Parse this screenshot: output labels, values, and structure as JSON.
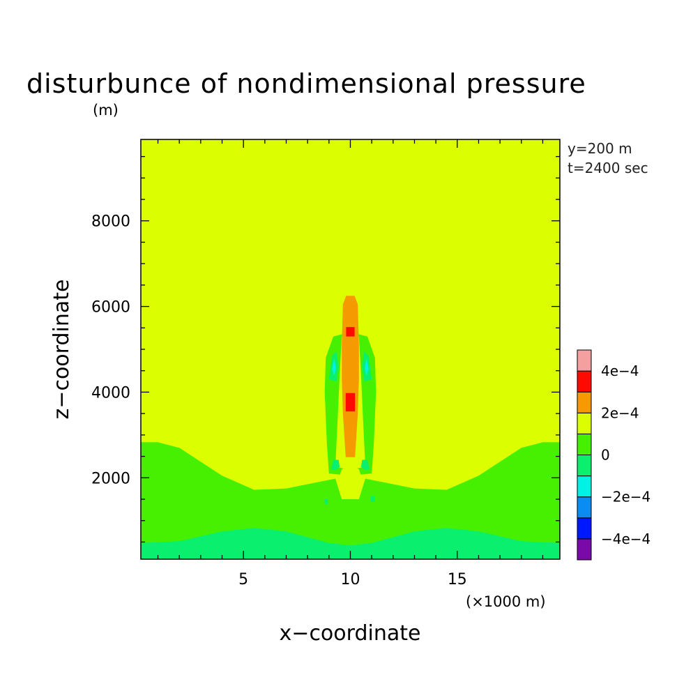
{
  "chart_data": {
    "type": "heatmap",
    "subtype": "filled-contour",
    "title": "disturbunce of nondimensional pressure",
    "y_unit": "(m)",
    "x_unit": "(×1000 m)",
    "xlabel": "x−coordinate",
    "ylabel": "z−coordinate",
    "annotation_lines": [
      "y=200 m",
      "t=2400 sec"
    ],
    "xlim": [
      0.2,
      19.8
    ],
    "ylim": [
      100,
      9900
    ],
    "x_ticks": [
      5,
      10,
      15
    ],
    "x_tick_labels": [
      "5",
      "10",
      "15"
    ],
    "y_ticks": [
      2000,
      4000,
      6000,
      8000
    ],
    "y_tick_labels": [
      "2000",
      "4000",
      "6000",
      "8000"
    ],
    "colorbar": {
      "levels": [
        {
          "range": [
            -0.0005,
            -0.0004
          ],
          "color": "#7a0aa8"
        },
        {
          "range": [
            -0.0004,
            -0.0003
          ],
          "color": "#0018ff"
        },
        {
          "range": [
            -0.0003,
            -0.0002
          ],
          "color": "#0a8cf0"
        },
        {
          "range": [
            -0.0002,
            -0.0001
          ],
          "color": "#00f2e4"
        },
        {
          "range": [
            -0.0001,
            0.0
          ],
          "color": "#0af06e"
        },
        {
          "range": [
            0.0,
            0.0001
          ],
          "color": "#46f000"
        },
        {
          "range": [
            0.0001,
            0.0002
          ],
          "color": "#dcff00"
        },
        {
          "range": [
            0.0002,
            0.0003
          ],
          "color": "#f59a00"
        },
        {
          "range": [
            0.0003,
            0.0004
          ],
          "color": "#ff0a00"
        },
        {
          "range": [
            0.0004,
            0.0005
          ],
          "color": "#f5a0a0"
        }
      ],
      "tick_values": [
        -0.0004,
        -0.0002,
        0,
        0.0002,
        0.0004
      ],
      "tick_labels": [
        "−4e−4",
        "−2e−4",
        "0",
        "2e−4",
        "4e−4"
      ]
    },
    "regions": [
      {
        "name": "background",
        "value_range": [
          0.0001,
          0.0002
        ],
        "color": "#dcff00"
      },
      {
        "name": "lower-layer",
        "value_range": [
          0.0,
          0.0001
        ],
        "color": "#46f000",
        "outline": [
          [
            0.2,
            2830
          ],
          [
            1,
            2830
          ],
          [
            2,
            2700
          ],
          [
            4,
            2050
          ],
          [
            5.5,
            1720
          ],
          [
            7,
            1750
          ],
          [
            8.5,
            1900
          ],
          [
            9.3,
            1980
          ],
          [
            9.6,
            1500
          ],
          [
            10.4,
            1500
          ],
          [
            10.7,
            1980
          ],
          [
            11.5,
            1900
          ],
          [
            13,
            1750
          ],
          [
            14.5,
            1720
          ],
          [
            16,
            2050
          ],
          [
            18,
            2700
          ],
          [
            19,
            2830
          ],
          [
            19.8,
            2830
          ],
          [
            19.8,
            100
          ],
          [
            0.2,
            100
          ]
        ]
      },
      {
        "name": "surface-layer",
        "value_range": [
          -0.0001,
          0.0
        ],
        "color": "#0af06e",
        "outline": [
          [
            0.2,
            480
          ],
          [
            2,
            520
          ],
          [
            4,
            750
          ],
          [
            5.5,
            830
          ],
          [
            7,
            750
          ],
          [
            9,
            480
          ],
          [
            10,
            420
          ],
          [
            11,
            480
          ],
          [
            13,
            750
          ],
          [
            14.5,
            830
          ],
          [
            16,
            750
          ],
          [
            18,
            520
          ],
          [
            19.8,
            480
          ],
          [
            19.8,
            100
          ],
          [
            0.2,
            100
          ]
        ]
      },
      {
        "name": "column-positive",
        "value_range": [
          0.0,
          0.0001
        ],
        "color": "#46f000",
        "outline": [
          [
            9.0,
            2100
          ],
          [
            8.9,
            2800
          ],
          [
            8.8,
            4000
          ],
          [
            8.85,
            4800
          ],
          [
            9.2,
            5300
          ],
          [
            10.0,
            5400
          ],
          [
            10.8,
            5300
          ],
          [
            11.15,
            4800
          ],
          [
            11.2,
            4000
          ],
          [
            11.1,
            2800
          ],
          [
            11.0,
            2100
          ],
          [
            10.0,
            2050
          ]
        ]
      },
      {
        "name": "column-core",
        "value_range": [
          0.0001,
          0.0002
        ],
        "color": "#dcff00",
        "outline": [
          [
            9.3,
            2250
          ],
          [
            9.4,
            3300
          ],
          [
            9.5,
            4400
          ],
          [
            9.6,
            5300
          ],
          [
            10.0,
            5500
          ],
          [
            10.4,
            5300
          ],
          [
            10.5,
            4400
          ],
          [
            10.6,
            3300
          ],
          [
            10.7,
            2250
          ],
          [
            10.0,
            2200
          ]
        ]
      },
      {
        "name": "bubble-lower",
        "value_range": [
          0.0001,
          0.0002
        ],
        "color": "#dcff00",
        "outline": [
          [
            9.4,
            1900
          ],
          [
            9.6,
            2200
          ],
          [
            10.0,
            2320
          ],
          [
            10.4,
            2200
          ],
          [
            10.6,
            1900
          ],
          [
            10.3,
            1550
          ],
          [
            10.0,
            1500
          ],
          [
            9.7,
            1550
          ]
        ]
      },
      {
        "name": "plume-orange",
        "value_range": [
          0.0002,
          0.0003
        ],
        "color": "#f59a00",
        "outline": [
          [
            9.78,
            2480
          ],
          [
            9.65,
            3500
          ],
          [
            9.6,
            4300
          ],
          [
            9.6,
            5100
          ],
          [
            9.65,
            6050
          ],
          [
            9.8,
            6250
          ],
          [
            10.2,
            6250
          ],
          [
            10.35,
            6050
          ],
          [
            10.4,
            5100
          ],
          [
            10.4,
            4300
          ],
          [
            10.35,
            3500
          ],
          [
            10.22,
            2480
          ]
        ]
      },
      {
        "name": "core-upper",
        "value_range": [
          0.0003,
          0.0004
        ],
        "color": "#ff0a00",
        "outline": [
          [
            9.8,
            5300
          ],
          [
            9.8,
            5520
          ],
          [
            10.2,
            5520
          ],
          [
            10.2,
            5300
          ]
        ]
      },
      {
        "name": "core-lower",
        "value_range": [
          0.0003,
          0.0004
        ],
        "color": "#ff0a00",
        "outline": [
          [
            9.78,
            3550
          ],
          [
            9.78,
            3980
          ],
          [
            10.22,
            3980
          ],
          [
            10.22,
            3550
          ]
        ]
      },
      {
        "name": "side-negative-left",
        "value_range": [
          -0.0001,
          0.0
        ],
        "color": "#0af06e",
        "outline": [
          [
            9.0,
            4300
          ],
          [
            9.15,
            4850
          ],
          [
            9.35,
            4950
          ],
          [
            9.45,
            4600
          ],
          [
            9.35,
            4250
          ]
        ]
      },
      {
        "name": "side-negative-right",
        "value_range": [
          -0.0001,
          0.0
        ],
        "color": "#0af06e",
        "outline": [
          [
            11.0,
            4300
          ],
          [
            10.85,
            4850
          ],
          [
            10.65,
            4950
          ],
          [
            10.55,
            4600
          ],
          [
            10.65,
            4250
          ]
        ]
      },
      {
        "name": "side-min-left",
        "value_range": [
          -0.0002,
          -0.0001
        ],
        "color": "#00f2e4",
        "outline": [
          [
            9.15,
            4550
          ],
          [
            9.25,
            4800
          ],
          [
            9.32,
            4550
          ],
          [
            9.25,
            4380
          ]
        ]
      },
      {
        "name": "side-min-right",
        "value_range": [
          -0.0002,
          -0.0001
        ],
        "color": "#00f2e4",
        "outline": [
          [
            10.85,
            4550
          ],
          [
            10.75,
            4800
          ],
          [
            10.68,
            4550
          ],
          [
            10.75,
            4380
          ]
        ]
      },
      {
        "name": "low-blob-left",
        "value_range": [
          -0.0001,
          0.0
        ],
        "color": "#0af06e",
        "outline": [
          [
            9.1,
            2200
          ],
          [
            9.2,
            2420
          ],
          [
            9.45,
            2420
          ],
          [
            9.5,
            2250
          ],
          [
            9.3,
            2180
          ]
        ]
      },
      {
        "name": "low-blob-right",
        "value_range": [
          -0.0001,
          0.0
        ],
        "color": "#0af06e",
        "outline": [
          [
            10.9,
            2200
          ],
          [
            10.8,
            2420
          ],
          [
            10.55,
            2420
          ],
          [
            10.5,
            2250
          ],
          [
            10.7,
            2180
          ]
        ]
      },
      {
        "name": "speck-left",
        "value_range": [
          -0.0001,
          0.0
        ],
        "color": "#0af06e",
        "outline": [
          [
            8.8,
            1380
          ],
          [
            8.8,
            1500
          ],
          [
            8.95,
            1500
          ],
          [
            8.95,
            1380
          ]
        ]
      },
      {
        "name": "speck-right",
        "value_range": [
          -0.0001,
          0.0
        ],
        "color": "#0af06e",
        "outline": [
          [
            10.95,
            1440
          ],
          [
            10.95,
            1570
          ],
          [
            11.15,
            1570
          ],
          [
            11.15,
            1440
          ]
        ]
      }
    ]
  }
}
